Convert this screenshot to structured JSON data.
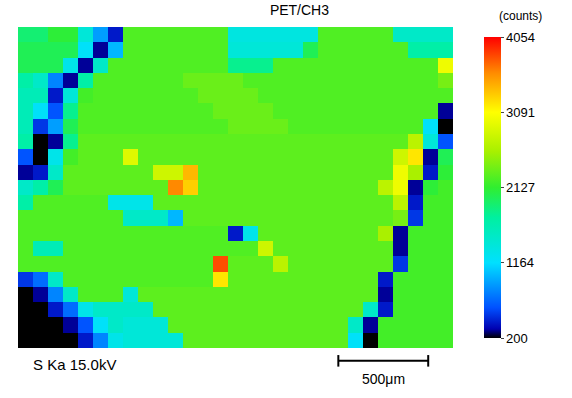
{
  "chart_data": {
    "type": "heatmap",
    "title": "PET/CH3",
    "label": "S Ka 15.0kV",
    "tick_labels": false,
    "grid": false,
    "xlim": [
      0,
      2420
    ],
    "ylim": [
      0,
      1785
    ],
    "scale_bar": {
      "length": 500,
      "label": "500μm"
    },
    "colorbar": {
      "title": "(counts)",
      "range": [
        200,
        4054
      ],
      "ticks": [
        200,
        1164,
        2127,
        3091,
        4054
      ]
    },
    "cells": [
      [
        1900,
        1900,
        2100,
        2100,
        1400,
        900,
        400,
        2250,
        2250,
        2250,
        2250,
        2250,
        2250,
        2250,
        1350,
        1350,
        1350,
        1350,
        1350,
        1350,
        2250,
        2250,
        2250,
        2250,
        2250,
        1500,
        1500,
        1500,
        1500
      ],
      [
        2000,
        2000,
        2000,
        2000,
        1200,
        300,
        1000,
        2250,
        2250,
        2250,
        2250,
        2250,
        2250,
        2250,
        1400,
        1400,
        1400,
        1400,
        1400,
        2000,
        2250,
        2250,
        2250,
        2250,
        2250,
        2250,
        1700,
        1700,
        1700
      ],
      [
        2000,
        2000,
        2000,
        1300,
        300,
        1500,
        2250,
        2250,
        2250,
        2250,
        2250,
        2250,
        2250,
        2250,
        1800,
        1800,
        1800,
        2250,
        2250,
        2250,
        2250,
        2250,
        2250,
        2250,
        2250,
        2250,
        2250,
        2250,
        3000
      ],
      [
        1700,
        1500,
        800,
        300,
        1700,
        2250,
        2250,
        2250,
        2250,
        2250,
        2250,
        2350,
        2350,
        2350,
        2350,
        2250,
        2250,
        2250,
        2250,
        2250,
        2250,
        2250,
        2250,
        2250,
        2250,
        2250,
        2250,
        2250,
        2400
      ],
      [
        1600,
        1600,
        400,
        1400,
        2200,
        2250,
        2250,
        2250,
        2250,
        2250,
        2250,
        2250,
        2350,
        2350,
        2350,
        2350,
        2250,
        2250,
        2250,
        2250,
        2250,
        2250,
        2250,
        2250,
        2250,
        2250,
        2250,
        2250,
        2250
      ],
      [
        1600,
        1200,
        600,
        1800,
        2250,
        2250,
        2250,
        2250,
        2250,
        2250,
        2250,
        2250,
        2250,
        2350,
        2350,
        2350,
        2350,
        2250,
        2250,
        2250,
        2250,
        2250,
        2250,
        2250,
        2250,
        2250,
        2250,
        2250,
        300
      ],
      [
        1600,
        500,
        900,
        2000,
        2250,
        2250,
        2250,
        2250,
        2250,
        2250,
        2250,
        2250,
        2250,
        2250,
        2350,
        2350,
        2350,
        2350,
        2250,
        2250,
        2250,
        2250,
        2250,
        2250,
        2250,
        2250,
        2250,
        1200,
        200
      ],
      [
        1700,
        200,
        300,
        1800,
        2300,
        2300,
        2300,
        2300,
        2300,
        2300,
        2300,
        2300,
        2300,
        2300,
        2300,
        2300,
        2300,
        2300,
        2300,
        2300,
        2300,
        2300,
        2300,
        2300,
        2300,
        2300,
        2700,
        1400,
        600
      ],
      [
        600,
        200,
        1300,
        2200,
        2300,
        2300,
        2300,
        2900,
        2300,
        2300,
        2300,
        2300,
        2300,
        2300,
        2300,
        2300,
        2300,
        2300,
        2300,
        2300,
        2300,
        2300,
        2300,
        2300,
        2300,
        2800,
        3200,
        300,
        2000
      ],
      [
        300,
        400,
        1500,
        2300,
        2300,
        2300,
        2300,
        2300,
        2300,
        2800,
        2800,
        3400,
        2300,
        2300,
        2300,
        2300,
        2300,
        2300,
        2300,
        2300,
        2300,
        2300,
        2300,
        2300,
        2300,
        3000,
        2600,
        400,
        2100
      ],
      [
        1500,
        1700,
        2000,
        2300,
        2300,
        2300,
        2300,
        2300,
        2300,
        2300,
        3600,
        3300,
        2300,
        2300,
        2300,
        2300,
        2300,
        2300,
        2300,
        2300,
        2300,
        2300,
        2300,
        2300,
        2700,
        3000,
        300,
        2100,
        2200
      ],
      [
        1700,
        2250,
        2250,
        2250,
        2250,
        2250,
        1300,
        1300,
        1300,
        2300,
        2300,
        2300,
        2300,
        2300,
        2300,
        2300,
        2300,
        2300,
        2300,
        2300,
        2300,
        2300,
        2300,
        2300,
        2300,
        2700,
        400,
        2200,
        2200
      ],
      [
        2250,
        2250,
        2250,
        2250,
        2250,
        2250,
        2250,
        1500,
        1500,
        1500,
        1000,
        2300,
        2300,
        2300,
        2300,
        2300,
        2300,
        2300,
        2300,
        2300,
        2300,
        2300,
        2300,
        2300,
        2300,
        2400,
        500,
        2200,
        2200
      ],
      [
        2250,
        2250,
        2250,
        2250,
        2250,
        2250,
        2250,
        2250,
        2250,
        2250,
        2250,
        2250,
        2250,
        2250,
        400,
        1300,
        2300,
        2300,
        2300,
        2300,
        2300,
        2300,
        2300,
        2300,
        2600,
        300,
        2200,
        2200,
        2200
      ],
      [
        2250,
        1600,
        1600,
        2250,
        2250,
        2250,
        2250,
        2250,
        2250,
        2250,
        2250,
        2250,
        2250,
        2250,
        2250,
        2250,
        2800,
        2300,
        2300,
        2300,
        2300,
        2300,
        2300,
        2300,
        2300,
        300,
        2200,
        2200,
        2200
      ],
      [
        2250,
        2250,
        2250,
        2250,
        2250,
        2250,
        2250,
        2250,
        2250,
        2250,
        2250,
        2250,
        2250,
        3800,
        2300,
        2300,
        2300,
        2700,
        2300,
        2300,
        2300,
        2300,
        2300,
        2300,
        2300,
        500,
        2200,
        2200,
        2200
      ],
      [
        500,
        700,
        1500,
        2250,
        2250,
        2250,
        2250,
        2250,
        2250,
        2250,
        2250,
        2250,
        2250,
        3200,
        2300,
        2300,
        2300,
        2300,
        2300,
        2300,
        2300,
        2300,
        2300,
        2300,
        400,
        2200,
        2200,
        2200,
        2200
      ],
      [
        200,
        300,
        800,
        1500,
        2250,
        2250,
        2250,
        1400,
        2300,
        2300,
        2300,
        2300,
        2300,
        2300,
        2300,
        2300,
        2300,
        2300,
        2300,
        2300,
        2300,
        2300,
        2300,
        2300,
        300,
        2200,
        2200,
        2200,
        2200
      ],
      [
        200,
        200,
        400,
        700,
        1300,
        1500,
        1500,
        1500,
        1500,
        2300,
        2300,
        2300,
        2300,
        2300,
        2300,
        2300,
        2300,
        2300,
        2300,
        2300,
        2300,
        2300,
        2300,
        1500,
        400,
        2200,
        2200,
        2200,
        2200
      ],
      [
        200,
        200,
        200,
        300,
        600,
        1200,
        1500,
        1400,
        1400,
        1400,
        2300,
        2300,
        2300,
        2300,
        2300,
        2300,
        2300,
        2300,
        2300,
        2300,
        2300,
        2300,
        1500,
        300,
        2200,
        2200,
        2200,
        2200,
        2200
      ],
      [
        200,
        200,
        200,
        200,
        400,
        800,
        1300,
        1400,
        1400,
        1400,
        1400,
        2300,
        2300,
        2300,
        2300,
        2300,
        2300,
        2300,
        2300,
        2300,
        2300,
        2300,
        1200,
        200,
        2200,
        2200,
        2200,
        2200,
        2200
      ]
    ]
  }
}
